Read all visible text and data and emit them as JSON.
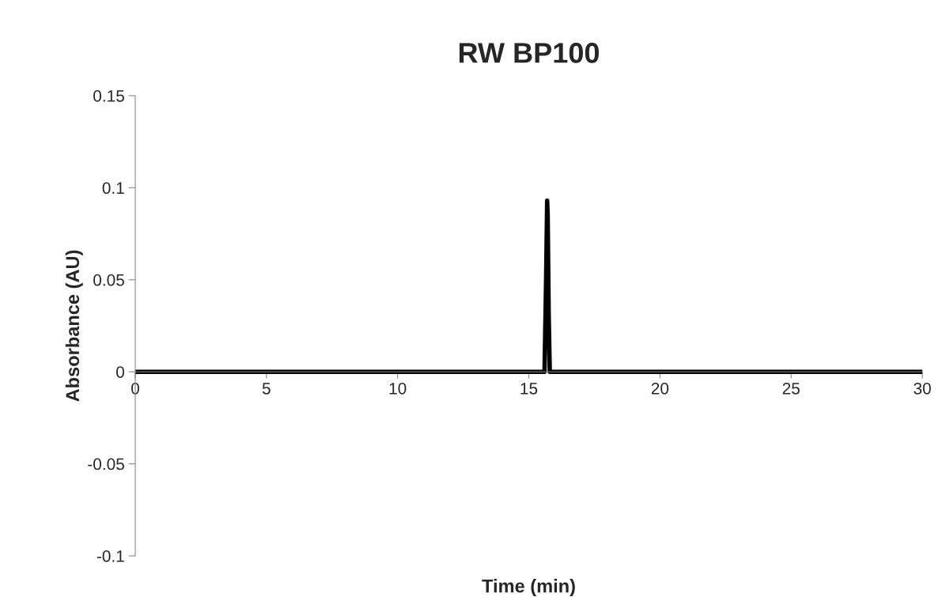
{
  "chart_data": {
    "type": "line",
    "title": "RW BP100",
    "xlabel": "Time (min)",
    "ylabel": "Absorbance (AU)",
    "x": [
      0,
      5,
      10,
      15,
      15.6,
      15.66,
      15.7,
      15.72,
      15.76,
      15.8,
      20,
      25,
      30
    ],
    "series": [
      {
        "color": "#000000",
        "values": [
          0,
          0,
          0,
          0,
          0,
          0.05,
          0.093,
          0.085,
          0.03,
          0,
          0,
          0,
          0
        ]
      }
    ],
    "xlim": [
      0,
      30
    ],
    "xticks": [
      0,
      5,
      10,
      15,
      20,
      25,
      30
    ],
    "ylim": [
      -0.1,
      0.15
    ],
    "yticks": [
      -0.1,
      -0.05,
      0,
      0.05,
      0.1,
      0.15
    ],
    "grid": false,
    "legend": false,
    "line_style": "solid",
    "marker": "none"
  }
}
